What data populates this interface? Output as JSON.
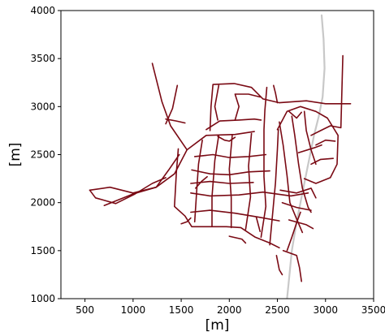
{
  "chart_data": {
    "type": "line",
    "xlabel": "[m]",
    "ylabel": "[m]",
    "xlim": [
      250,
      3500
    ],
    "ylim": [
      1000,
      4000
    ],
    "xticks": [
      500,
      1000,
      1500,
      2000,
      2500,
      3000,
      3500
    ],
    "yticks": [
      1000,
      1500,
      2000,
      2500,
      3000,
      3500,
      4000
    ],
    "grid": false,
    "colors": {
      "network": "#7a0a14",
      "rail": "#c8c8c8",
      "axis": "#000000"
    },
    "series": [
      {
        "role": "rail",
        "paths": [
          [
            [
              2600,
              1000
            ],
            [
              2620,
              1200
            ],
            [
              2650,
              1500
            ],
            [
              2700,
              1800
            ],
            [
              2760,
              2100
            ],
            [
              2820,
              2400
            ],
            [
              2880,
              2700
            ],
            [
              2930,
              2900
            ],
            [
              2970,
              3100
            ],
            [
              2990,
              3400
            ],
            [
              2980,
              3700
            ],
            [
              2960,
              3950
            ]
          ]
        ]
      },
      {
        "role": "network",
        "paths": [
          [
            [
              550,
              2130
            ],
            [
              760,
              2160
            ],
            [
              1000,
              2100
            ],
            [
              1240,
              2160
            ],
            [
              1430,
              2300
            ],
            [
              1560,
              2550
            ],
            [
              1760,
              2700
            ],
            [
              2060,
              2710
            ],
            [
              2260,
              2740
            ]
          ],
          [
            [
              550,
              2130
            ],
            [
              610,
              2050
            ],
            [
              820,
              1990
            ],
            [
              1020,
              2090
            ],
            [
              1200,
              2200
            ],
            [
              1340,
              2260
            ]
          ],
          [
            [
              700,
              1970
            ],
            [
              1000,
              2090
            ],
            [
              1240,
              2160
            ],
            [
              1370,
              2340
            ],
            [
              1480,
              2500
            ]
          ],
          [
            [
              1200,
              3450
            ],
            [
              1300,
              3050
            ],
            [
              1390,
              2800
            ],
            [
              1560,
              2550
            ]
          ],
          [
            [
              1460,
              3220
            ],
            [
              1410,
              2980
            ],
            [
              1340,
              2820
            ]
          ],
          [
            [
              1340,
              2870
            ],
            [
              1450,
              2850
            ],
            [
              1540,
              2830
            ]
          ],
          [
            [
              1470,
              2560
            ],
            [
              1450,
              2320
            ],
            [
              1430,
              1960
            ],
            [
              1540,
              1860
            ],
            [
              1610,
              1750
            ],
            [
              1770,
              1750
            ],
            [
              1970,
              1750
            ],
            [
              2120,
              1740
            ],
            [
              2270,
              1640
            ],
            [
              2420,
              1580
            ],
            [
              2520,
              1530
            ]
          ],
          [
            [
              1600,
              2100
            ],
            [
              1800,
              2070
            ],
            [
              2100,
              2080
            ],
            [
              2350,
              2110
            ],
            [
              2640,
              2070
            ],
            [
              2820,
              2100
            ]
          ],
          [
            [
              1610,
              2340
            ],
            [
              1800,
              2300
            ],
            [
              2000,
              2290
            ],
            [
              2200,
              2320
            ],
            [
              2420,
              2330
            ]
          ],
          [
            [
              1640,
              2480
            ],
            [
              1830,
              2500
            ],
            [
              2000,
              2470
            ],
            [
              2200,
              2480
            ],
            [
              2380,
              2500
            ]
          ],
          [
            [
              1600,
              2200
            ],
            [
              1800,
              2220
            ],
            [
              2000,
              2200
            ],
            [
              2250,
              2210
            ]
          ],
          [
            [
              1600,
              1900
            ],
            [
              1800,
              1920
            ],
            [
              2060,
              1890
            ],
            [
              2300,
              1850
            ],
            [
              2520,
              1810
            ]
          ],
          [
            [
              1640,
              1800
            ],
            [
              1660,
              2100
            ],
            [
              1680,
              2400
            ],
            [
              1720,
              2650
            ]
          ],
          [
            [
              1820,
              1750
            ],
            [
              1820,
              2060
            ],
            [
              1850,
              2440
            ],
            [
              1890,
              2700
            ]
          ],
          [
            [
              2020,
              1740
            ],
            [
              2020,
              2050
            ],
            [
              2000,
              2350
            ],
            [
              2030,
              2700
            ]
          ],
          [
            [
              2170,
              1720
            ],
            [
              2220,
              2060
            ],
            [
              2200,
              2380
            ],
            [
              2230,
              2720
            ]
          ],
          [
            [
              2330,
              1640
            ],
            [
              2380,
              1960
            ],
            [
              2360,
              2270
            ],
            [
              2360,
              2760
            ],
            [
              2370,
              2960
            ],
            [
              2390,
              3200
            ]
          ],
          [
            [
              2420,
              1560
            ],
            [
              2450,
              1880
            ],
            [
              2480,
              2210
            ],
            [
              2500,
              2550
            ],
            [
              2510,
              2760
            ]
          ],
          [
            [
              1800,
              2750
            ],
            [
              1810,
              3000
            ],
            [
              1830,
              3230
            ],
            [
              2050,
              3240
            ],
            [
              2230,
              3200
            ],
            [
              2350,
              3080
            ],
            [
              2520,
              3040
            ],
            [
              2800,
              3060
            ],
            [
              3000,
              3030
            ],
            [
              3260,
              3030
            ]
          ],
          [
            [
              1760,
              2760
            ],
            [
              1900,
              2850
            ],
            [
              2100,
              2860
            ],
            [
              2260,
              2870
            ],
            [
              2330,
              2860
            ]
          ],
          [
            [
              1880,
              2860
            ],
            [
              1850,
              3000
            ],
            [
              1890,
              3220
            ]
          ],
          [
            [
              2060,
              2860
            ],
            [
              2100,
              3000
            ],
            [
              2060,
              3130
            ],
            [
              2200,
              3130
            ],
            [
              2320,
              3100
            ]
          ],
          [
            [
              2500,
              2760
            ],
            [
              2600,
              2950
            ],
            [
              2740,
              3000
            ],
            [
              2900,
              2950
            ],
            [
              3020,
              2880
            ],
            [
              3130,
              2700
            ],
            [
              3120,
              2400
            ],
            [
              3050,
              2260
            ],
            [
              2900,
              2200
            ],
            [
              2780,
              2250
            ]
          ],
          [
            [
              2520,
              2840
            ],
            [
              2560,
              2600
            ],
            [
              2600,
              2280
            ],
            [
              2630,
              2000
            ],
            [
              2700,
              1830
            ],
            [
              2760,
              1690
            ]
          ],
          [
            [
              2650,
              2900
            ],
            [
              2680,
              2700
            ],
            [
              2720,
              2400
            ],
            [
              2760,
              2150
            ],
            [
              2820,
              1950
            ],
            [
              2850,
              1900
            ]
          ],
          [
            [
              2780,
              2950
            ],
            [
              2800,
              2750
            ],
            [
              2850,
              2550
            ],
            [
              2900,
              2400
            ]
          ],
          [
            [
              2850,
              2700
            ],
            [
              2950,
              2750
            ],
            [
              3050,
              2800
            ],
            [
              3160,
              2780
            ],
            [
              3180,
              3530
            ]
          ],
          [
            [
              2900,
              2600
            ],
            [
              3000,
              2650
            ],
            [
              3100,
              2640
            ]
          ],
          [
            [
              2850,
              2400
            ],
            [
              2950,
              2450
            ],
            [
              3080,
              2460
            ]
          ],
          [
            [
              2530,
              2130
            ],
            [
              2700,
              2100
            ],
            [
              2850,
              2150
            ],
            [
              2900,
              2050
            ]
          ],
          [
            [
              2550,
              2000
            ],
            [
              2700,
              1950
            ],
            [
              2850,
              1920
            ]
          ],
          [
            [
              2620,
              1820
            ],
            [
              2800,
              1770
            ],
            [
              2870,
              1730
            ]
          ],
          [
            [
              2600,
              1500
            ],
            [
              2650,
              1640
            ],
            [
              2700,
              1790
            ],
            [
              2740,
              1900
            ]
          ],
          [
            [
              2560,
              1500
            ],
            [
              2700,
              1450
            ],
            [
              2730,
              1320
            ],
            [
              2750,
              1180
            ]
          ],
          [
            [
              2490,
              1450
            ],
            [
              2520,
              1300
            ],
            [
              2550,
              1250
            ]
          ],
          [
            [
              2280,
              1850
            ],
            [
              2320,
              1700
            ]
          ],
          [
            [
              2720,
              2520
            ],
            [
              2880,
              2570
            ],
            [
              2960,
              2600
            ]
          ],
          [
            [
              1880,
              2690
            ],
            [
              1950,
              2650
            ],
            [
              2000,
              2640
            ],
            [
              2060,
              2680
            ]
          ],
          [
            [
              1650,
              2150
            ],
            [
              1710,
              2220
            ],
            [
              1770,
              2270
            ]
          ],
          [
            [
              1500,
              1780
            ],
            [
              1560,
              1800
            ],
            [
              1600,
              1840
            ]
          ],
          [
            [
              2000,
              1650
            ],
            [
              2130,
              1620
            ],
            [
              2170,
              1580
            ]
          ],
          [
            [
              2460,
              3220
            ],
            [
              2480,
              3140
            ],
            [
              2500,
              3040
            ]
          ],
          [
            [
              2620,
              2950
            ],
            [
              2700,
              2880
            ],
            [
              2750,
              2940
            ]
          ]
        ]
      }
    ]
  }
}
